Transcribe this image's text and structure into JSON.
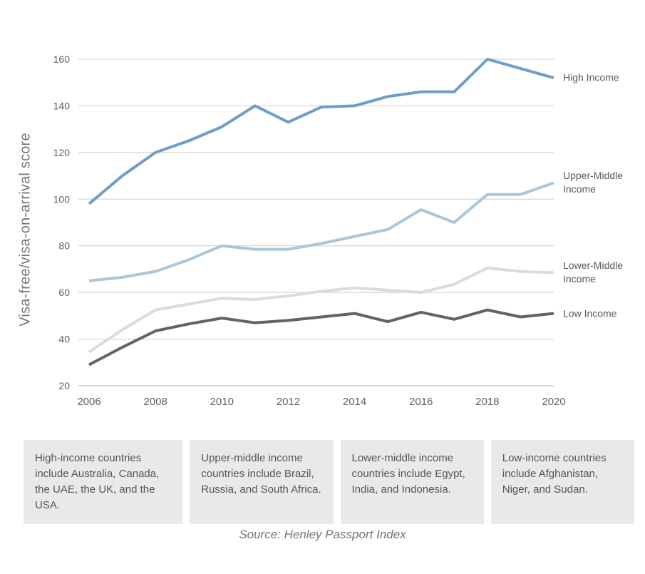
{
  "chart_data": {
    "type": "line",
    "title": "",
    "xlabel": "",
    "ylabel": "Visa-free/visa-on-arrival score",
    "x": [
      2006,
      2007,
      2008,
      2009,
      2010,
      2011,
      2012,
      2013,
      2014,
      2015,
      2016,
      2017,
      2018,
      2019,
      2020
    ],
    "x_tick_labels": [
      "2006",
      "2008",
      "2010",
      "2012",
      "2014",
      "2016",
      "2018",
      "2020"
    ],
    "y_ticks": [
      20,
      40,
      60,
      80,
      100,
      120,
      140,
      160
    ],
    "ylim": [
      20,
      160
    ],
    "grid": "horizontal",
    "legend_position": "right-of-line-ends",
    "series": [
      {
        "name": "High Income",
        "color": "#6f9dc9",
        "values": [
          98,
          110,
          120,
          125,
          131,
          140,
          133,
          139.5,
          140,
          144,
          146,
          146,
          160,
          156,
          152
        ]
      },
      {
        "name": "Upper-Middle Income",
        "color": "#a9c6dd",
        "values": [
          65,
          66.5,
          69,
          74,
          80,
          78.5,
          78.5,
          81,
          84,
          87,
          95.5,
          90,
          102,
          102,
          107
        ]
      },
      {
        "name": "Lower-Middle Income",
        "color": "#d5dde4",
        "values": [
          34.5,
          44,
          52.5,
          55,
          57.5,
          57,
          58.5,
          60.5,
          62,
          61,
          60,
          63.5,
          70.5,
          69,
          68.5
        ]
      },
      {
        "name": "Low Income",
        "color": "#636363",
        "values": [
          29,
          36.5,
          43.5,
          46.5,
          49,
          47,
          48,
          49.5,
          51,
          47.5,
          51.5,
          48.5,
          52.5,
          49.5,
          51
        ]
      }
    ]
  },
  "axis": {
    "y_title": "Visa-free/visa-on-arrival score"
  },
  "notes": [
    "High-income countries include Australia, Canada, the UAE, the UK, and the USA.",
    "Upper-middle income countries include Brazil, Russia, and South Africa.",
    "Lower-middle income countries include Egypt, India, and Indonesia.",
    "Low-income countries include Afghanistan, Niger, and Sudan."
  ],
  "source": "Source: Henley Passport Index",
  "colors": {
    "grid": "#cccccc",
    "axis_baseline": "#ababab",
    "tick_text": "#616161",
    "series_label_text": "#55585b",
    "note_bg": "#e9e9e9",
    "note_text": "#555555",
    "source_text": "#757575"
  }
}
